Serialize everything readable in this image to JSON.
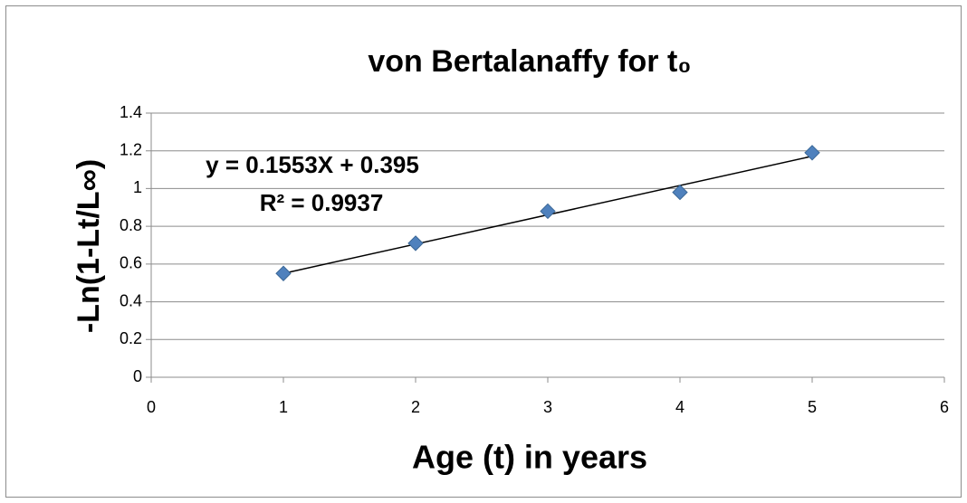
{
  "chart_data": {
    "type": "scatter",
    "title": "von Bertalanaffy for t₀",
    "x_label": "Age (t) in years",
    "y_label": "-Ln(1-Lt/L∞)",
    "series": [
      {
        "name": "-Ln(1-Lt/L∞)",
        "color": "#4f81bd",
        "x": [
          1,
          2,
          3,
          4,
          5
        ],
        "values": [
          0.55,
          0.71,
          0.88,
          0.98,
          1.19
        ]
      }
    ],
    "trendline": {
      "slope": 0.1553,
      "intercept": 0.395,
      "color": "#000000"
    },
    "annotations": [
      "y = 0.1553X + 0.395",
      "R² = 0.9937"
    ],
    "xlim": [
      0,
      6
    ],
    "xticks": [
      0,
      1,
      2,
      3,
      4,
      5,
      6
    ],
    "ylim": [
      0,
      1.4
    ],
    "yticks": [
      0,
      0.2,
      0.4,
      0.6,
      0.8,
      1,
      1.2,
      1.4
    ],
    "grid": true
  }
}
